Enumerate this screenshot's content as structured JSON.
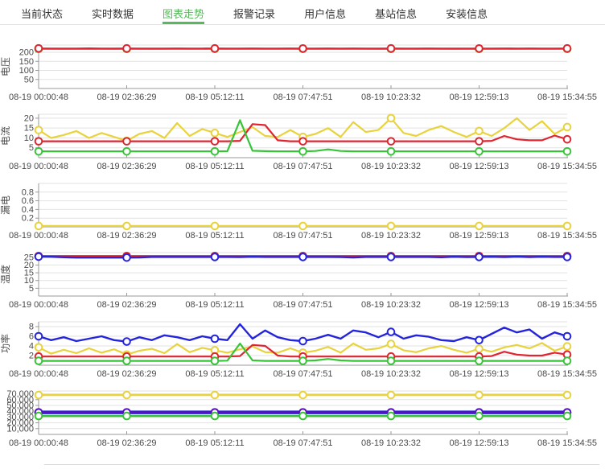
{
  "nav": {
    "active_color": "#57b85c",
    "tabs": [
      {
        "id": "current-status",
        "label": "当前状态",
        "active": false
      },
      {
        "id": "realtime-data",
        "label": "实时数据",
        "active": false
      },
      {
        "id": "chart-trend",
        "label": "图表走势",
        "active": true
      },
      {
        "id": "alarm-records",
        "label": "报警记录",
        "active": false
      },
      {
        "id": "user-info",
        "label": "用户信息",
        "active": false
      },
      {
        "id": "station-info",
        "label": "基站信息",
        "active": false
      },
      {
        "id": "install-info",
        "label": "安装信息",
        "active": false
      }
    ]
  },
  "palette": {
    "red": "#e02430",
    "yellow": "#e8d33d",
    "green": "#38c438",
    "blue": "#2424dd",
    "purple": "#5c10c0",
    "grid": "#e2e2e2",
    "axis": "#999999",
    "text": "#4a4a4a"
  },
  "x_axis_labels": [
    "08-19 00:00:48",
    "08-19 02:36:29",
    "08-19 05:12:11",
    "08-19 07:47:51",
    "08-19 10:23:32",
    "08-19 12:59:13",
    "08-19 15:34:55"
  ],
  "chart_data": [
    {
      "type": "line",
      "id": "voltage",
      "y_label": "电压",
      "y_max": 240,
      "y_ticks": [
        50,
        100,
        150,
        200
      ],
      "y_tick_labels": [
        "50",
        "100",
        "150",
        "200"
      ],
      "series": [
        {
          "name": "yellow",
          "color": "#e8d33d",
          "width": 2.2,
          "values": [
            219.5,
            219.5,
            219.5,
            219.5,
            219.5,
            219.5,
            219.5,
            219.5,
            219.5,
            219.5,
            219.5,
            219.5,
            219.5,
            219.5,
            219.5,
            219.5,
            219.5,
            219.5,
            219.5,
            219.5,
            219.5,
            219.5,
            219.5,
            219.5,
            219.5,
            219.5,
            219.5,
            219.5,
            219.5,
            219.5,
            219.5,
            219.5,
            219.5,
            219.5,
            219.5,
            219.5,
            219.5,
            219.5,
            219.5,
            219.5,
            219.5,
            219.5,
            219.5
          ]
        },
        {
          "name": "green",
          "color": "#38c438",
          "width": 2.2,
          "values": [
            218.8,
            218.8,
            218.8,
            218.8,
            218.8,
            218.8,
            218.8,
            218.8,
            218.8,
            218.8,
            218.8,
            218.8,
            218.8,
            218.8,
            218.8,
            218.8,
            218.8,
            218.8,
            218.8,
            218.8,
            218.8,
            218.8,
            218.8,
            218.8,
            218.8,
            218.8,
            218.8,
            218.8,
            218.8,
            218.8,
            218.8,
            218.8,
            218.8,
            218.8,
            218.8,
            218.8,
            218.8,
            218.8,
            218.8,
            218.8,
            218.8,
            218.8,
            218.8
          ]
        },
        {
          "name": "red",
          "color": "#e02430",
          "width": 2.2,
          "values": [
            221.5,
            221,
            220.5,
            221,
            221.8,
            221,
            220.5,
            221.2,
            221,
            220.6,
            221,
            221.4,
            221,
            220.7,
            221.2,
            221,
            220.8,
            221.3,
            220.8,
            221,
            221.5,
            221,
            220.7,
            221.2,
            220.8,
            221.4,
            221,
            220.6,
            221.2,
            221,
            220.8,
            221.3,
            221,
            220.6,
            221.1,
            221,
            220.8,
            221.2,
            220.7,
            221.3,
            221,
            220.8,
            221.2
          ]
        }
      ]
    },
    {
      "type": "line",
      "id": "current",
      "y_label": "电流",
      "y_max": 22,
      "y_ticks": [
        5,
        10,
        15,
        20
      ],
      "y_tick_labels": [
        "5",
        "10",
        "15",
        "20"
      ],
      "series": [
        {
          "name": "yellow",
          "color": "#e8d33d",
          "width": 2.2,
          "values": [
            14,
            10,
            11.5,
            13.5,
            10,
            12.5,
            10.5,
            8.5,
            12,
            13.5,
            10,
            17.5,
            11,
            14.5,
            12.5,
            10.5,
            13,
            15.5,
            11,
            10.5,
            14,
            10.5,
            12,
            15,
            10.5,
            18,
            13,
            14,
            20,
            12.5,
            11,
            14,
            16,
            13,
            10.5,
            13.5,
            11,
            15,
            20,
            14,
            18.5,
            12,
            15.5
          ]
        },
        {
          "name": "red",
          "color": "#e02430",
          "width": 2.2,
          "values": [
            8.3,
            8.3,
            8.3,
            8.3,
            8.3,
            8.3,
            8.3,
            8.3,
            8.3,
            8.3,
            8.3,
            8.3,
            8.3,
            8.3,
            8.3,
            8.3,
            8.5,
            17,
            16.5,
            8.8,
            8.3,
            8.3,
            8.3,
            8.3,
            8.3,
            8.3,
            8.3,
            8.3,
            8.3,
            8.3,
            8.3,
            8.3,
            8.3,
            8.3,
            8.3,
            8.3,
            8.5,
            11,
            9.3,
            8.8,
            8.8,
            11.2,
            9.3
          ]
        },
        {
          "name": "green",
          "color": "#38c438",
          "width": 2.2,
          "values": [
            3.2,
            3.2,
            3.2,
            3.2,
            3.2,
            3.2,
            3.2,
            3.2,
            3.2,
            3.2,
            3.2,
            3.2,
            3.2,
            3.2,
            3.2,
            3.3,
            19,
            3.5,
            3.3,
            3.2,
            3.2,
            3.2,
            3.4,
            4.2,
            3.4,
            3.2,
            3.2,
            3.2,
            3.2,
            3.2,
            3.2,
            3.2,
            3.2,
            3.2,
            3.2,
            3.2,
            3.2,
            3.2,
            3.2,
            3.2,
            3.2,
            3.2,
            3.2
          ]
        }
      ]
    },
    {
      "type": "line",
      "id": "leakage",
      "y_label": "漏电",
      "y_max": 1,
      "y_ticks": [
        0.2,
        0.4,
        0.6,
        0.8
      ],
      "y_tick_labels": [
        "0.2",
        "0.4",
        "0.6",
        "0.8"
      ],
      "series": [
        {
          "name": "yellow",
          "color": "#e8d33d",
          "width": 2.2,
          "values": [
            0.02,
            0.02,
            0.02,
            0.02,
            0.02,
            0.02,
            0.02,
            0.02,
            0.02,
            0.02,
            0.02,
            0.02,
            0.02,
            0.02,
            0.02,
            0.02,
            0.02,
            0.02,
            0.02,
            0.02,
            0.02,
            0.02,
            0.02,
            0.02,
            0.02,
            0.02,
            0.02,
            0.02,
            0.02,
            0.02,
            0.02,
            0.02,
            0.02,
            0.02,
            0.02,
            0.02,
            0.02,
            0.02,
            0.02,
            0.02,
            0.02,
            0.02,
            0.02
          ]
        }
      ]
    },
    {
      "type": "line",
      "id": "temperature",
      "y_label": "温度",
      "y_max": 28,
      "y_ticks": [
        5,
        10,
        15,
        20,
        25
      ],
      "y_tick_labels": [
        "5",
        "10",
        "15",
        "20",
        "25"
      ],
      "series": [
        {
          "name": "red",
          "color": "#e02430",
          "width": 2.2,
          "values": [
            25.8,
            25.8,
            25.8,
            25.8,
            25.8,
            25.8,
            25.8,
            25.8,
            25.8,
            25.8,
            25.8,
            25.8,
            25.8,
            25.8,
            25.8,
            25.8,
            25.8,
            25.8,
            25.8,
            25.8,
            25.8,
            25.8,
            25.8,
            25.8,
            25.8,
            25.8,
            25.8,
            25.8,
            25.8,
            25.8,
            25.8,
            25.8,
            25.8,
            25.8,
            25.8,
            25.8,
            25.8,
            25.8,
            25.8,
            25.8,
            25.8,
            25.8,
            25.8
          ]
        },
        {
          "name": "blue",
          "color": "#2424dd",
          "width": 2.4,
          "values": [
            25.4,
            25.3,
            25,
            24.8,
            24.8,
            24.8,
            24.8,
            24.8,
            24.9,
            25.2,
            25.2,
            25.2,
            25.2,
            25.2,
            25.2,
            25.2,
            25.1,
            25.3,
            25.2,
            25.2,
            25.2,
            25.2,
            25.2,
            25.2,
            25.1,
            24.9,
            25.2,
            25.2,
            25.2,
            25.2,
            25.2,
            25.2,
            25,
            25.3,
            25.1,
            25.2,
            25.3,
            25.1,
            25.4,
            25.1,
            25.3,
            25.2,
            25.2
          ]
        }
      ]
    },
    {
      "type": "line",
      "id": "power",
      "y_label": "功率",
      "y_max": 9,
      "y_ticks": [
        2,
        4,
        6,
        8
      ],
      "y_tick_labels": [
        "2",
        "4",
        "6",
        "8"
      ],
      "series": [
        {
          "name": "blue",
          "color": "#2424dd",
          "width": 2.4,
          "values": [
            6,
            5.2,
            5.8,
            5,
            5.5,
            6,
            5.2,
            4.9,
            5.8,
            5.2,
            6.2,
            5.8,
            5.2,
            6,
            5.5,
            5.2,
            8.5,
            5.5,
            7.2,
            5.8,
            5.2,
            5,
            5.5,
            6.3,
            5.5,
            7.2,
            6.8,
            5.8,
            6.9,
            5.5,
            6.2,
            5.9,
            5.2,
            5,
            5.8,
            5.2,
            6.5,
            7.8,
            6.8,
            7.4,
            5.5,
            6.8,
            6
          ]
        },
        {
          "name": "yellow",
          "color": "#e8d33d",
          "width": 2.2,
          "values": [
            3.7,
            2.4,
            3.2,
            2.5,
            3.5,
            2.6,
            3.3,
            2.2,
            3,
            3.4,
            2.5,
            4.4,
            2.7,
            3.6,
            3.1,
            2.6,
            3.3,
            3.9,
            2.7,
            2.6,
            3.5,
            2.6,
            3,
            3.8,
            2.6,
            4.5,
            3.2,
            3.5,
            4.4,
            3.1,
            2.7,
            3.5,
            4,
            3.2,
            2.6,
            3.4,
            2.8,
            3.7,
            4.2,
            3.5,
            4.6,
            3,
            3.9
          ]
        },
        {
          "name": "red",
          "color": "#e02430",
          "width": 2.2,
          "values": [
            1.8,
            1.8,
            1.8,
            1.8,
            1.8,
            1.8,
            1.8,
            1.8,
            1.8,
            1.8,
            1.8,
            1.8,
            1.8,
            1.8,
            1.8,
            1.8,
            1.9,
            4.2,
            4,
            2,
            1.8,
            1.8,
            1.8,
            1.8,
            1.8,
            1.8,
            1.8,
            1.8,
            1.8,
            1.8,
            1.8,
            1.8,
            1.8,
            1.8,
            1.8,
            1.8,
            1.9,
            2.8,
            2.2,
            2,
            2,
            2.6,
            2.2
          ]
        },
        {
          "name": "green",
          "color": "#38c438",
          "width": 2.2,
          "values": [
            0.9,
            0.9,
            0.9,
            0.9,
            0.9,
            0.9,
            0.9,
            0.9,
            0.9,
            0.9,
            0.9,
            0.9,
            0.9,
            0.9,
            0.9,
            0.95,
            4.5,
            1,
            0.9,
            0.9,
            0.9,
            0.9,
            1,
            1.3,
            1,
            0.9,
            0.9,
            0.9,
            0.9,
            0.9,
            0.9,
            0.9,
            0.9,
            0.9,
            0.9,
            0.9,
            0.9,
            0.9,
            0.9,
            0.9,
            0.9,
            0.9,
            0.9
          ]
        }
      ]
    },
    {
      "type": "line",
      "id": "energy",
      "y_label": "",
      "y_max": 75000,
      "y_ticks": [
        10000,
        20000,
        30000,
        40000,
        50000,
        60000,
        70000
      ],
      "y_tick_labels": [
        "10,000",
        "20,000",
        "30,000",
        "40,000",
        "50,000",
        "60,000",
        "70,000"
      ],
      "series": [
        {
          "name": "yellow",
          "color": "#e8d33d",
          "width": 2.5,
          "values": [
            68000,
            68000,
            68000,
            68000,
            68000,
            68000,
            68000,
            68000,
            68000,
            68000,
            68000,
            68000,
            68000,
            68000,
            68000,
            68000,
            68000,
            68000,
            68000,
            68000,
            68000,
            68000,
            68000,
            68000,
            68000,
            68000,
            68000,
            68000,
            68000,
            68000,
            68000,
            68000,
            68000,
            68000,
            68000,
            68000,
            68000,
            68000,
            68000,
            68000,
            68000,
            68000,
            68000
          ]
        },
        {
          "name": "blue",
          "color": "#2424dd",
          "width": 4.5,
          "values": [
            38000,
            38000,
            38000,
            38000,
            38000,
            38000,
            38000,
            38000,
            38000,
            38000,
            38000,
            38000,
            38000,
            38000,
            38000,
            38000,
            38000,
            38000,
            38000,
            38000,
            38000,
            38000,
            38000,
            38000,
            38000,
            38000,
            38000,
            38000,
            38000,
            38000,
            38000,
            38000,
            38000,
            38000,
            38000,
            38000,
            38000,
            38000,
            38000,
            38000,
            38000,
            38000,
            38000
          ]
        },
        {
          "name": "purple",
          "color": "#5c10c0",
          "width": 2.2,
          "values": [
            38000,
            38000,
            38000,
            38000,
            38000,
            38000,
            38000,
            38000,
            38000,
            38000,
            38000,
            38000,
            38000,
            38000,
            38000,
            38000,
            38000,
            38000,
            38000,
            38000,
            38000,
            38000,
            38000,
            38000,
            38000,
            38000,
            38000,
            38000,
            38000,
            38000,
            38000,
            38000,
            38000,
            38000,
            38000,
            38000,
            38000,
            38000,
            38000,
            38000,
            38000,
            38000,
            38000
          ]
        },
        {
          "name": "green",
          "color": "#38c438",
          "width": 2.5,
          "values": [
            31800,
            31800,
            31800,
            31800,
            31800,
            31800,
            31800,
            31800,
            31800,
            31800,
            31800,
            31800,
            31800,
            31800,
            31800,
            31800,
            31800,
            31800,
            31800,
            31800,
            31800,
            31800,
            31800,
            31800,
            31800,
            31800,
            31800,
            31800,
            31800,
            31800,
            31800,
            31800,
            31800,
            31800,
            31800,
            31800,
            31800,
            31800,
            31800,
            31800,
            31800,
            31800,
            31800
          ]
        }
      ]
    }
  ]
}
